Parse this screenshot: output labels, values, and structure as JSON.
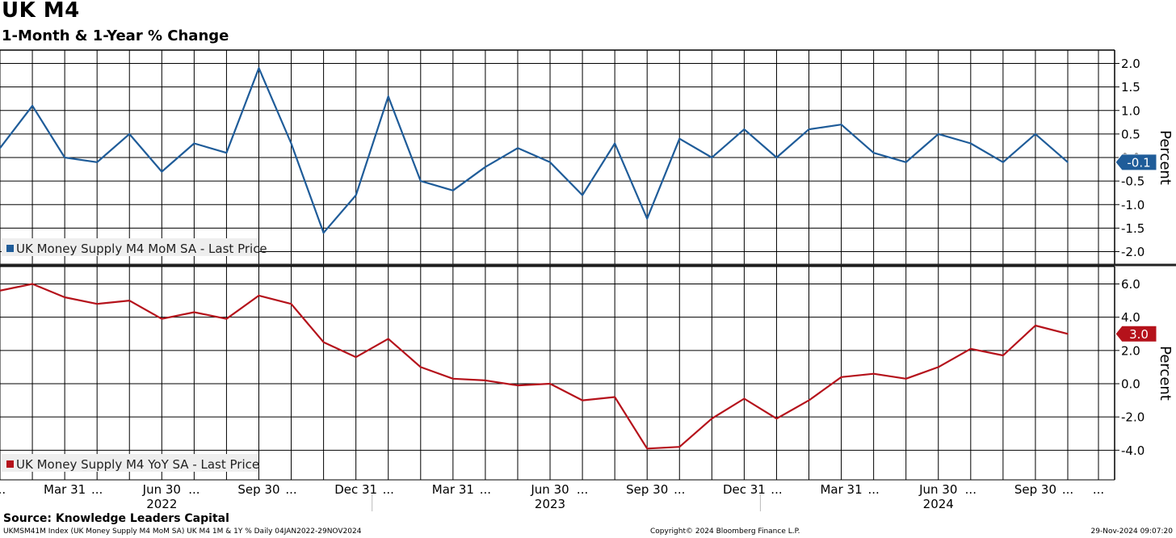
{
  "header": {
    "title": "UK M4",
    "subtitle": "1-Month & 1-Year % Change"
  },
  "footer": {
    "source": "Source: Knowledge Leaders Capital",
    "left": "UKMSM41M Index (UK Money Supply M4 MoM SA) UK M4 1M & 1Y %  Daily 04JAN2022-29NOV2024",
    "center": "Copyright© 2024 Bloomberg Finance L.P.",
    "right": "29-Nov-2024 09:07:20"
  },
  "colors": {
    "mom": "#1f5c99",
    "yoy": "#b5121b",
    "grid": "#000000",
    "legend_bg": "#eeeeee"
  },
  "chart_data": [
    {
      "type": "line",
      "panel": "top",
      "ylabel": "Percent",
      "ylim": [
        -2.2,
        2.2
      ],
      "y_ticks": [
        "2.0",
        "1.5",
        "1.0",
        "0.5",
        "0.0",
        "-0.5",
        "-1.0",
        "-1.5",
        "-2.0"
      ],
      "y_tick_values": [
        2.0,
        1.5,
        1.0,
        0.5,
        0.0,
        -0.5,
        -1.0,
        -1.5,
        -2.0
      ],
      "series": [
        {
          "name": "UK Money Supply M4 MoM SA - Last Price",
          "last_value_label": "-0.1",
          "x": [
            "2022-01",
            "2022-02",
            "2022-03",
            "2022-04",
            "2022-05",
            "2022-06",
            "2022-07",
            "2022-08",
            "2022-09",
            "2022-10",
            "2022-11",
            "2022-12",
            "2023-01",
            "2023-02",
            "2023-03",
            "2023-04",
            "2023-05",
            "2023-06",
            "2023-07",
            "2023-08",
            "2023-09",
            "2023-10",
            "2023-11",
            "2023-12",
            "2024-01",
            "2024-02",
            "2024-03",
            "2024-04",
            "2024-05",
            "2024-06",
            "2024-07",
            "2024-08",
            "2024-09",
            "2024-10"
          ],
          "values": [
            0.2,
            1.1,
            0.0,
            -0.1,
            0.5,
            -0.3,
            0.3,
            0.1,
            1.9,
            0.3,
            -1.6,
            -0.8,
            1.3,
            -0.5,
            -0.7,
            -0.2,
            0.2,
            -0.1,
            -0.8,
            0.3,
            -1.3,
            0.4,
            0.0,
            0.6,
            0.0,
            0.6,
            0.7,
            0.1,
            -0.1,
            0.5,
            0.3,
            -0.1,
            0.5,
            -0.1
          ]
        }
      ]
    },
    {
      "type": "line",
      "panel": "bottom",
      "ylabel": "Percent",
      "ylim": [
        -5.2,
        7.0
      ],
      "y_ticks": [
        "6.0",
        "4.0",
        "2.0",
        "0.0",
        "-2.0",
        "-4.0"
      ],
      "y_tick_values": [
        6.0,
        4.0,
        2.0,
        0.0,
        -2.0,
        -4.0
      ],
      "series": [
        {
          "name": "UK Money Supply M4 YoY SA - Last Price",
          "last_value_label": "3.0",
          "x": [
            "2022-01",
            "2022-02",
            "2022-03",
            "2022-04",
            "2022-05",
            "2022-06",
            "2022-07",
            "2022-08",
            "2022-09",
            "2022-10",
            "2022-11",
            "2022-12",
            "2023-01",
            "2023-02",
            "2023-03",
            "2023-04",
            "2023-05",
            "2023-06",
            "2023-07",
            "2023-08",
            "2023-09",
            "2023-10",
            "2023-11",
            "2023-12",
            "2024-01",
            "2024-02",
            "2024-03",
            "2024-04",
            "2024-05",
            "2024-06",
            "2024-07",
            "2024-08",
            "2024-09",
            "2024-10"
          ],
          "values": [
            5.6,
            6.0,
            5.2,
            4.8,
            5.0,
            3.9,
            4.3,
            3.9,
            5.3,
            4.8,
            2.5,
            1.6,
            2.7,
            1.0,
            0.3,
            0.2,
            -0.1,
            0.0,
            -1.0,
            -0.8,
            -3.9,
            -3.8,
            -2.1,
            -0.9,
            -2.1,
            -1.0,
            0.4,
            0.6,
            0.3,
            1.0,
            2.1,
            1.7,
            3.5,
            3.0
          ]
        }
      ]
    }
  ],
  "x_axis": {
    "quarter_labels": [
      "Mar 31",
      "Jun 30",
      "Sep 30",
      "Dec 31",
      "Mar 31",
      "Jun 30",
      "Sep 30",
      "Dec 31",
      "Mar 31",
      "Jun 30",
      "Sep 30"
    ],
    "quarter_months": [
      "2022-03",
      "2022-06",
      "2022-09",
      "2022-12",
      "2023-03",
      "2023-06",
      "2023-09",
      "2023-12",
      "2024-03",
      "2024-06",
      "2024-09"
    ],
    "years": [
      "2022",
      "2023",
      "2024"
    ],
    "year_months": [
      "2022-06",
      "2023-06",
      "2024-06"
    ],
    "ellipsis_months": [
      "2022-01",
      "2022-04",
      "2022-07",
      "2022-10",
      "2023-01",
      "2023-04",
      "2023-07",
      "2023-10",
      "2024-01",
      "2024-04",
      "2024-07",
      "2024-10"
    ]
  }
}
